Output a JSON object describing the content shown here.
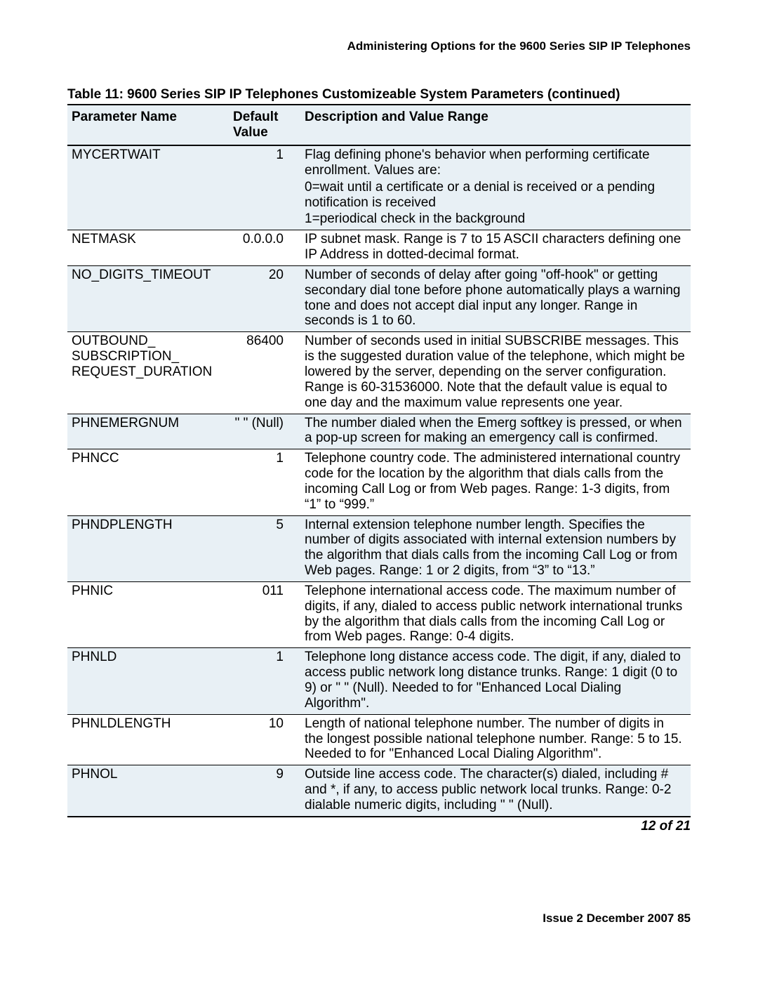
{
  "running_head": "Administering Options for the 9600 Series SIP IP Telephones",
  "table_title": "Table 11: 9600 Series SIP IP Telephones Customizeable System Parameters  (continued)",
  "columns": {
    "name": "Parameter Name",
    "def": "Default Value",
    "desc": "Description and Value Range"
  },
  "rows": [
    {
      "shade": true,
      "name": "MYCERTWAIT",
      "def": "1",
      "desc": [
        "Flag defining phone's behavior when performing certificate enrollment. Values are:",
        "0=wait until a certificate or a denial is received or a pending notification is received",
        "1=periodical check in the background"
      ]
    },
    {
      "shade": false,
      "name": "NETMASK",
      "def": "0.0.0.0",
      "desc": [
        "IP subnet mask. Range is 7 to 15 ASCII characters defining one IP Address in dotted-decimal format."
      ]
    },
    {
      "shade": true,
      "name": "NO_DIGITS_TIMEOUT",
      "def": "20",
      "desc": [
        "Number of seconds of delay after going \"off-hook\" or getting secondary dial tone before phone automatically plays a warning tone and does not accept dial input any longer. Range in seconds is 1 to 60."
      ]
    },
    {
      "shade": false,
      "name": "OUTBOUND_\nSUBSCRIPTION_\nREQUEST_DURATION",
      "def": "86400",
      "desc": [
        "Number of seconds used in initial SUBSCRIBE messages. This is the suggested duration value of the telephone, which might be lowered by the server, depending on the server configuration. Range is 60-31536000. Note that the default value is equal to one day and the maximum value represents one year."
      ]
    },
    {
      "shade": true,
      "name": "PHNEMERGNUM",
      "def": "\" \" (Null)",
      "desc": [
        "The number dialed when the Emerg softkey is pressed, or when a pop-up screen for making an emergency call is confirmed."
      ]
    },
    {
      "shade": false,
      "name": "PHNCC",
      "def": "1",
      "desc": [
        "Telephone country code. The administered international country code for the location by the algorithm that dials calls from the incoming Call Log or from Web pages. Range: 1-3 digits, from “1” to “999.”"
      ]
    },
    {
      "shade": true,
      "name": "PHNDPLENGTH",
      "def": "5",
      "desc": [
        "Internal extension telephone number length. Specifies the number of digits associated with internal extension numbers by the algorithm that dials calls from the incoming Call Log or from Web pages. Range: 1 or 2 digits, from “3” to “13.”"
      ]
    },
    {
      "shade": false,
      "name": "PHNIC",
      "def": "011",
      "desc": [
        "Telephone international access code. The maximum number of digits, if any, dialed to access public network international trunks by the algorithm that dials calls from the incoming Call Log or from Web pages. Range: 0-4 digits."
      ]
    },
    {
      "shade": true,
      "name": "PHNLD",
      "def": "1",
      "desc": [
        "Telephone long distance access code. The digit, if any, dialed to access public network long distance trunks. Range: 1 digit (0 to 9) or \" \" (Null). Needed to for \"Enhanced Local Dialing Algorithm\"."
      ]
    },
    {
      "shade": false,
      "name": "PHNLDLENGTH",
      "def": "10",
      "desc": [
        "Length of national telephone number. The number of digits in the longest possible national telephone number. Range: 5 to 15. Needed to for \"Enhanced Local Dialing Algorithm\"."
      ]
    },
    {
      "shade": true,
      "name": "PHNOL",
      "def": "9",
      "desc": [
        "Outside line access code. The character(s) dialed, including # and *, if any, to access public network local trunks. Range: 0-2 dialable numeric digits, including \" \" (Null)."
      ]
    }
  ],
  "pagination": "12 of 21",
  "footer": "Issue 2   December 2007    85"
}
